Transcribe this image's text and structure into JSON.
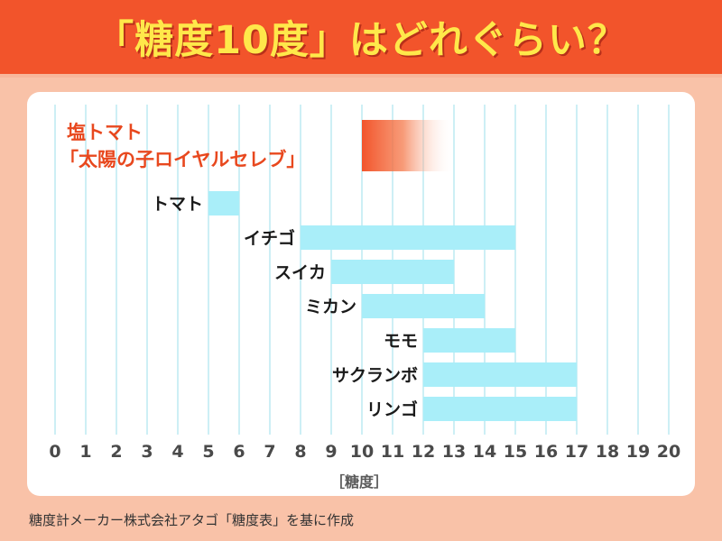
{
  "header": {
    "title": "「糖度10度」はどれぐらい？"
  },
  "source_note": "糖度計メーカー株式会社アタゴ「糖度表」を基に作成",
  "colors": {
    "banner": "#f2542b",
    "title_text": "#ffe84a",
    "bar": "#a9eef9",
    "highlight": "#f2542b",
    "highlight_label": "#e8481e",
    "grid": "#cdeff5",
    "axis_text": "#4a4a4a"
  },
  "chart_data": {
    "type": "bar",
    "orientation": "horizontal",
    "title": "「糖度10度」はどれぐらい？",
    "xlabel": "［糖度］",
    "ylabel": "",
    "xlim": [
      0,
      20
    ],
    "xticks": [
      "0",
      "1",
      "2",
      "3",
      "4",
      "5",
      "6",
      "7",
      "8",
      "9",
      "10",
      "11",
      "12",
      "13",
      "14",
      "15",
      "16",
      "17",
      "18",
      "19",
      "20"
    ],
    "grid": true,
    "highlight": {
      "label_line1": "塩トマト",
      "label_line2": "「太陽の子ロイヤルセレブ」",
      "start": 10,
      "end": 13,
      "style": "gradient-fade"
    },
    "items": [
      {
        "label": "トマト",
        "start": 5,
        "end": 6
      },
      {
        "label": "イチゴ",
        "start": 8,
        "end": 15
      },
      {
        "label": "スイカ",
        "start": 9,
        "end": 13
      },
      {
        "label": "ミカン",
        "start": 10,
        "end": 14
      },
      {
        "label": "モモ",
        "start": 12,
        "end": 15
      },
      {
        "label": "サクランボ",
        "start": 12,
        "end": 17
      },
      {
        "label": "リンゴ",
        "start": 12,
        "end": 17
      }
    ]
  }
}
